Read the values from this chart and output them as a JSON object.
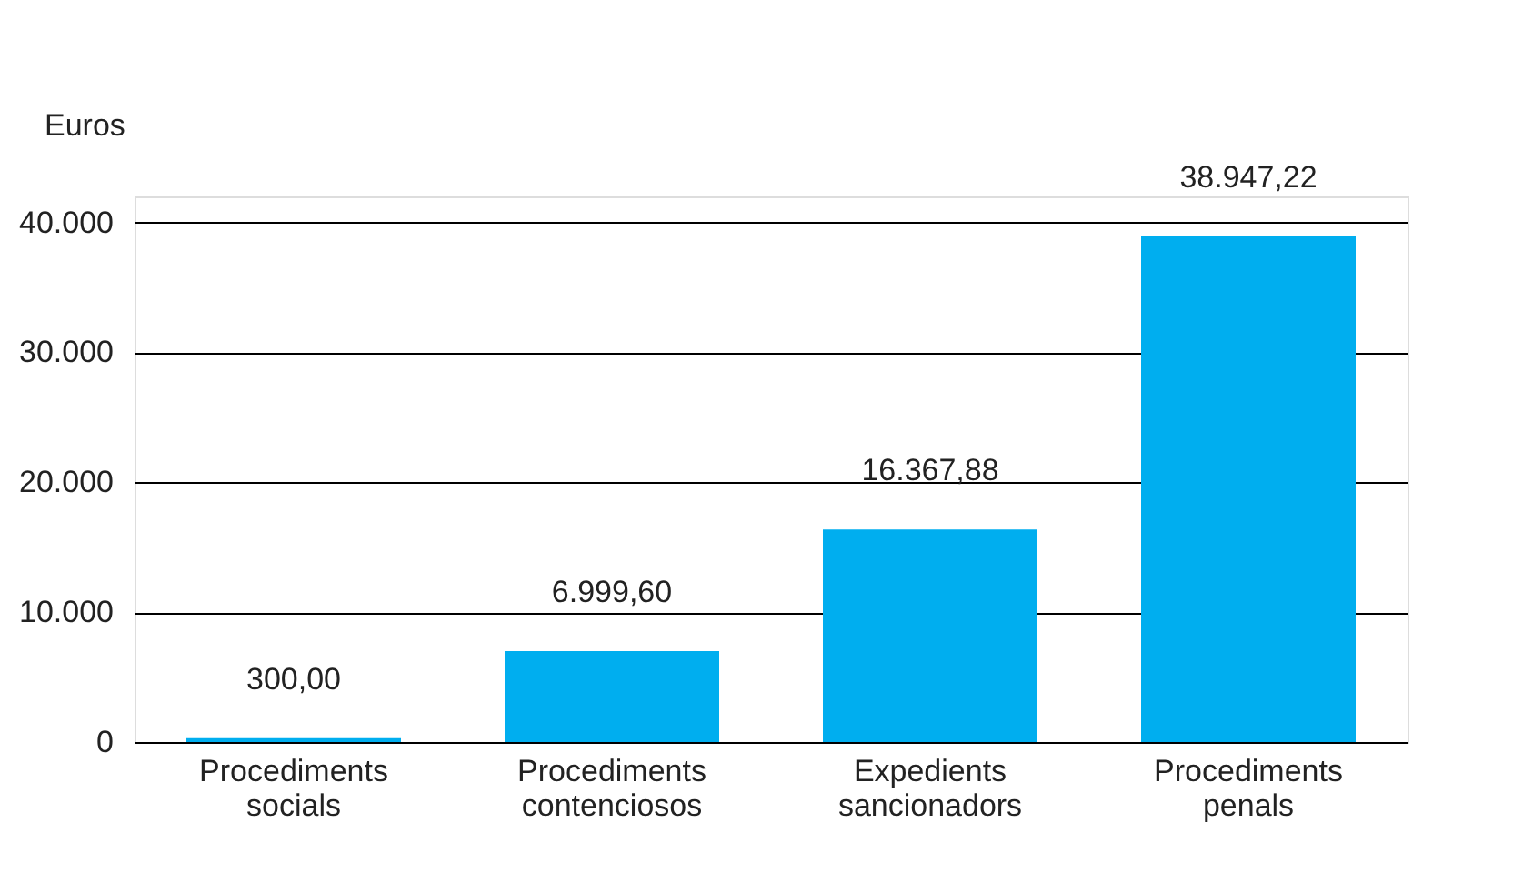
{
  "chart_data": {
    "type": "bar",
    "ylabel": "Euros",
    "categories": [
      "Procediments socials",
      "Procediments contenciosos",
      "Expedients sancionadors",
      "Procediments penals"
    ],
    "values": [
      300,
      6999.6,
      16367.88,
      38947.22
    ],
    "value_labels": [
      "300,00",
      "6.999,60",
      "16.367,88",
      "38.947,22"
    ],
    "color": "#00aeef",
    "ylim": [
      0,
      42000
    ],
    "yticks": [
      {
        "value": 0,
        "label": "0"
      },
      {
        "value": 10000,
        "label": "10.000"
      },
      {
        "value": 20000,
        "label": "20.000"
      },
      {
        "value": 30000,
        "label": "30.000"
      },
      {
        "value": 40000,
        "label": "40.000"
      }
    ],
    "grid": "y"
  }
}
